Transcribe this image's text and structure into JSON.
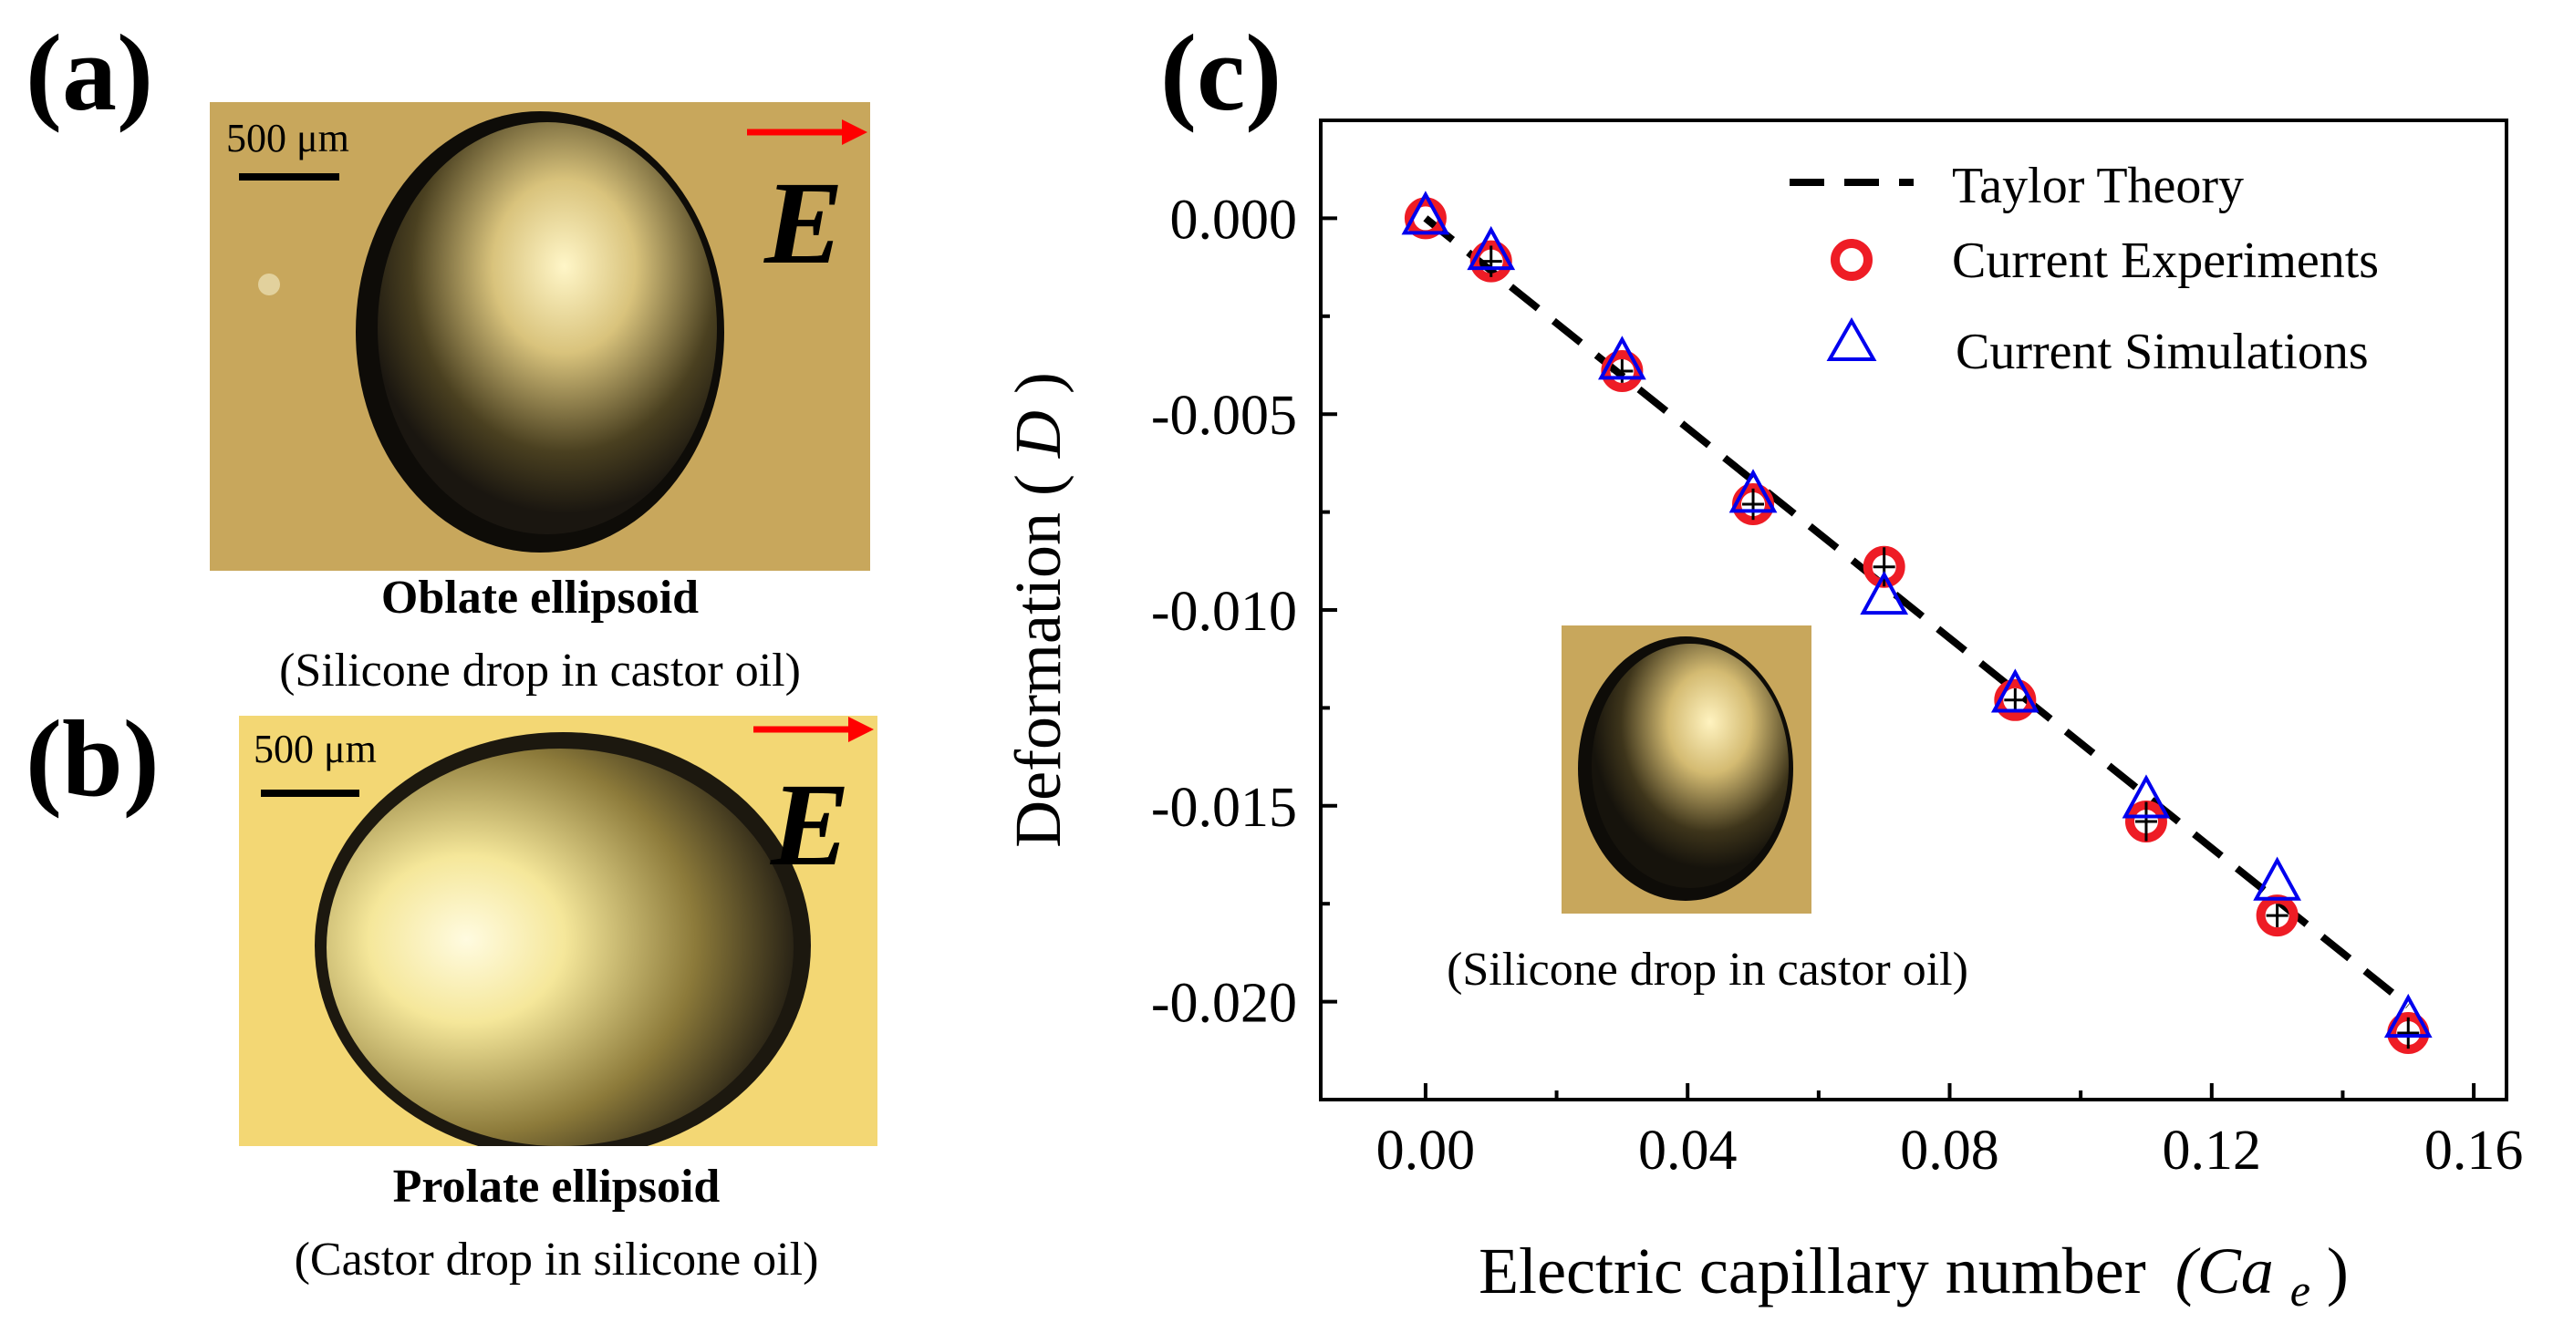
{
  "panels": {
    "a": {
      "label": "(a)",
      "scale_text": "500 μm",
      "field_symbol": "E",
      "title": "Oblate ellipsoid",
      "subtitle": "(Silicone drop in castor oil)"
    },
    "b": {
      "label": "(b)",
      "scale_text": "500 μm",
      "field_symbol": "E",
      "title": "Prolate ellipsoid",
      "subtitle": "(Castor drop in silicone oil)"
    },
    "c": {
      "label": "(c)",
      "inset_caption": "(Silicone drop in castor oil)"
    }
  },
  "colors": {
    "photo_a_bg": "#c8a75c",
    "photo_b_bg": "#f3d774",
    "arrow": "#ff0000",
    "experiments": "#ee1c25",
    "simulations": "#0000ee",
    "theory": "#000000"
  },
  "chart_data": {
    "type": "scatter",
    "title": "",
    "xlabel": "Electric capillary number",
    "xlabel_symbol": "(Ca",
    "xlabel_subscript": "e",
    "xlabel_close": ")",
    "ylabel": "Deformation (",
    "ylabel_symbol": "D",
    "ylabel_close": ")",
    "xlim": [
      -0.016,
      0.165
    ],
    "ylim": [
      -0.0225,
      0.0025
    ],
    "xticks": [
      0.0,
      0.04,
      0.08,
      0.12,
      0.16
    ],
    "xtick_labels": [
      "0.00",
      "0.04",
      "0.08",
      "0.12",
      "0.16"
    ],
    "yticks": [
      0.0,
      -0.005,
      -0.01,
      -0.015,
      -0.02
    ],
    "ytick_labels": [
      "0.000",
      "-0.005",
      "-0.010",
      "-0.015",
      "-0.020"
    ],
    "legend_position": "top-right",
    "series": [
      {
        "name": "Taylor Theory",
        "kind": "dashed-line",
        "x": [
          0.0,
          0.15
        ],
        "y": [
          0.0,
          -0.0201
        ]
      },
      {
        "name": "Current Experiments",
        "kind": "circle",
        "x": [
          0.0,
          0.01,
          0.03,
          0.05,
          0.07,
          0.09,
          0.11,
          0.13,
          0.15
        ],
        "y": [
          0.0,
          -0.0011,
          -0.0039,
          -0.0073,
          -0.0089,
          -0.0123,
          -0.0154,
          -0.0178,
          -0.0208
        ],
        "err": [
          0.0,
          0.0004,
          0.0003,
          0.0004,
          0.0005,
          0.0003,
          0.0005,
          0.0003,
          0.0004
        ]
      },
      {
        "name": "Current Simulations",
        "kind": "triangle",
        "x": [
          0.0,
          0.01,
          0.03,
          0.05,
          0.07,
          0.09,
          0.11,
          0.13,
          0.15
        ],
        "y": [
          0.0,
          -0.0009,
          -0.0037,
          -0.0071,
          -0.0097,
          -0.0122,
          -0.0149,
          -0.017,
          -0.0205
        ]
      }
    ]
  }
}
